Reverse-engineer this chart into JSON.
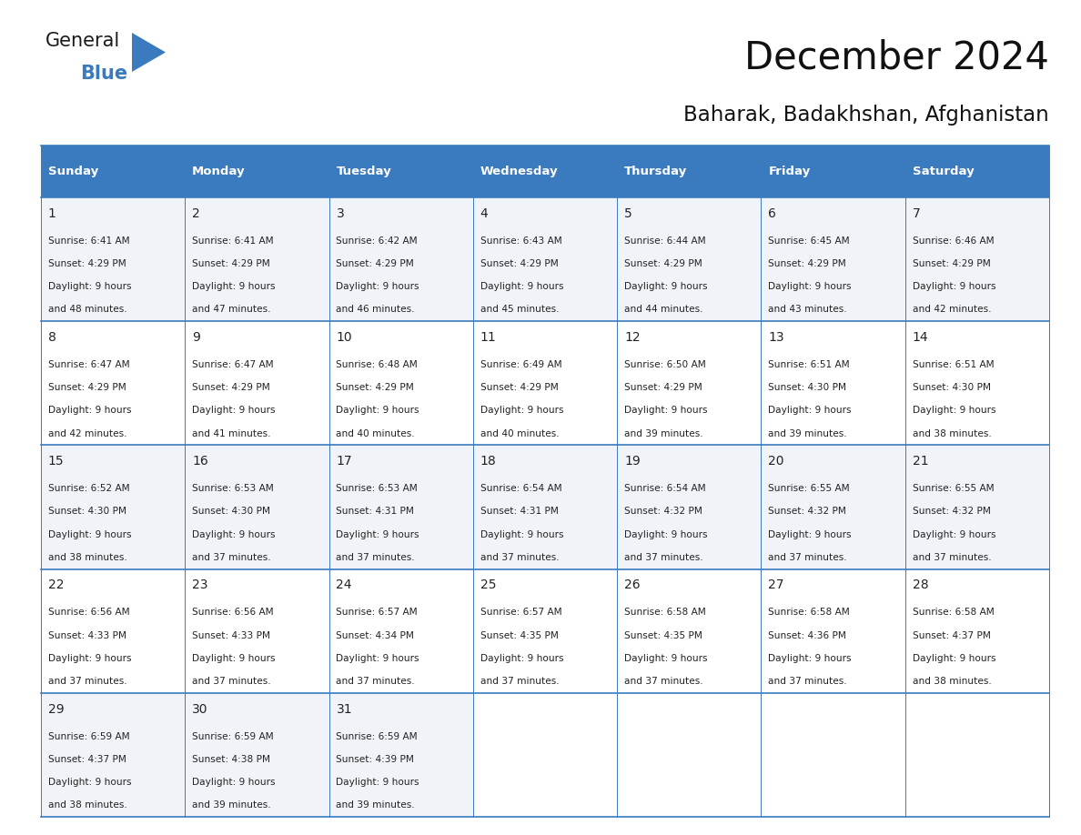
{
  "title": "December 2024",
  "subtitle": "Baharak, Badakhshan, Afghanistan",
  "header_color": "#3a7abf",
  "header_text_color": "#FFFFFF",
  "cell_bg_even": "#f0f4f8",
  "cell_bg_odd": "#ffffff",
  "border_color": "#3a7abf",
  "text_color": "#222222",
  "day_names": [
    "Sunday",
    "Monday",
    "Tuesday",
    "Wednesday",
    "Thursday",
    "Friday",
    "Saturday"
  ],
  "days": [
    {
      "day": 1,
      "col": 0,
      "row": 0,
      "sunrise": "6:41 AM",
      "sunset": "4:29 PM",
      "minutes": "48"
    },
    {
      "day": 2,
      "col": 1,
      "row": 0,
      "sunrise": "6:41 AM",
      "sunset": "4:29 PM",
      "minutes": "47"
    },
    {
      "day": 3,
      "col": 2,
      "row": 0,
      "sunrise": "6:42 AM",
      "sunset": "4:29 PM",
      "minutes": "46"
    },
    {
      "day": 4,
      "col": 3,
      "row": 0,
      "sunrise": "6:43 AM",
      "sunset": "4:29 PM",
      "minutes": "45"
    },
    {
      "day": 5,
      "col": 4,
      "row": 0,
      "sunrise": "6:44 AM",
      "sunset": "4:29 PM",
      "minutes": "44"
    },
    {
      "day": 6,
      "col": 5,
      "row": 0,
      "sunrise": "6:45 AM",
      "sunset": "4:29 PM",
      "minutes": "43"
    },
    {
      "day": 7,
      "col": 6,
      "row": 0,
      "sunrise": "6:46 AM",
      "sunset": "4:29 PM",
      "minutes": "42"
    },
    {
      "day": 8,
      "col": 0,
      "row": 1,
      "sunrise": "6:47 AM",
      "sunset": "4:29 PM",
      "minutes": "42"
    },
    {
      "day": 9,
      "col": 1,
      "row": 1,
      "sunrise": "6:47 AM",
      "sunset": "4:29 PM",
      "minutes": "41"
    },
    {
      "day": 10,
      "col": 2,
      "row": 1,
      "sunrise": "6:48 AM",
      "sunset": "4:29 PM",
      "minutes": "40"
    },
    {
      "day": 11,
      "col": 3,
      "row": 1,
      "sunrise": "6:49 AM",
      "sunset": "4:29 PM",
      "minutes": "40"
    },
    {
      "day": 12,
      "col": 4,
      "row": 1,
      "sunrise": "6:50 AM",
      "sunset": "4:29 PM",
      "minutes": "39"
    },
    {
      "day": 13,
      "col": 5,
      "row": 1,
      "sunrise": "6:51 AM",
      "sunset": "4:30 PM",
      "minutes": "39"
    },
    {
      "day": 14,
      "col": 6,
      "row": 1,
      "sunrise": "6:51 AM",
      "sunset": "4:30 PM",
      "minutes": "38"
    },
    {
      "day": 15,
      "col": 0,
      "row": 2,
      "sunrise": "6:52 AM",
      "sunset": "4:30 PM",
      "minutes": "38"
    },
    {
      "day": 16,
      "col": 1,
      "row": 2,
      "sunrise": "6:53 AM",
      "sunset": "4:30 PM",
      "minutes": "37"
    },
    {
      "day": 17,
      "col": 2,
      "row": 2,
      "sunrise": "6:53 AM",
      "sunset": "4:31 PM",
      "minutes": "37"
    },
    {
      "day": 18,
      "col": 3,
      "row": 2,
      "sunrise": "6:54 AM",
      "sunset": "4:31 PM",
      "minutes": "37"
    },
    {
      "day": 19,
      "col": 4,
      "row": 2,
      "sunrise": "6:54 AM",
      "sunset": "4:32 PM",
      "minutes": "37"
    },
    {
      "day": 20,
      "col": 5,
      "row": 2,
      "sunrise": "6:55 AM",
      "sunset": "4:32 PM",
      "minutes": "37"
    },
    {
      "day": 21,
      "col": 6,
      "row": 2,
      "sunrise": "6:55 AM",
      "sunset": "4:32 PM",
      "minutes": "37"
    },
    {
      "day": 22,
      "col": 0,
      "row": 3,
      "sunrise": "6:56 AM",
      "sunset": "4:33 PM",
      "minutes": "37"
    },
    {
      "day": 23,
      "col": 1,
      "row": 3,
      "sunrise": "6:56 AM",
      "sunset": "4:33 PM",
      "minutes": "37"
    },
    {
      "day": 24,
      "col": 2,
      "row": 3,
      "sunrise": "6:57 AM",
      "sunset": "4:34 PM",
      "minutes": "37"
    },
    {
      "day": 25,
      "col": 3,
      "row": 3,
      "sunrise": "6:57 AM",
      "sunset": "4:35 PM",
      "minutes": "37"
    },
    {
      "day": 26,
      "col": 4,
      "row": 3,
      "sunrise": "6:58 AM",
      "sunset": "4:35 PM",
      "minutes": "37"
    },
    {
      "day": 27,
      "col": 5,
      "row": 3,
      "sunrise": "6:58 AM",
      "sunset": "4:36 PM",
      "minutes": "37"
    },
    {
      "day": 28,
      "col": 6,
      "row": 3,
      "sunrise": "6:58 AM",
      "sunset": "4:37 PM",
      "minutes": "38"
    },
    {
      "day": 29,
      "col": 0,
      "row": 4,
      "sunrise": "6:59 AM",
      "sunset": "4:37 PM",
      "minutes": "38"
    },
    {
      "day": 30,
      "col": 1,
      "row": 4,
      "sunrise": "6:59 AM",
      "sunset": "4:38 PM",
      "minutes": "39"
    },
    {
      "day": 31,
      "col": 2,
      "row": 4,
      "sunrise": "6:59 AM",
      "sunset": "4:39 PM",
      "minutes": "39"
    }
  ],
  "num_rows": 5,
  "num_cols": 7,
  "fig_width": 11.88,
  "fig_height": 9.18,
  "dpi": 100
}
